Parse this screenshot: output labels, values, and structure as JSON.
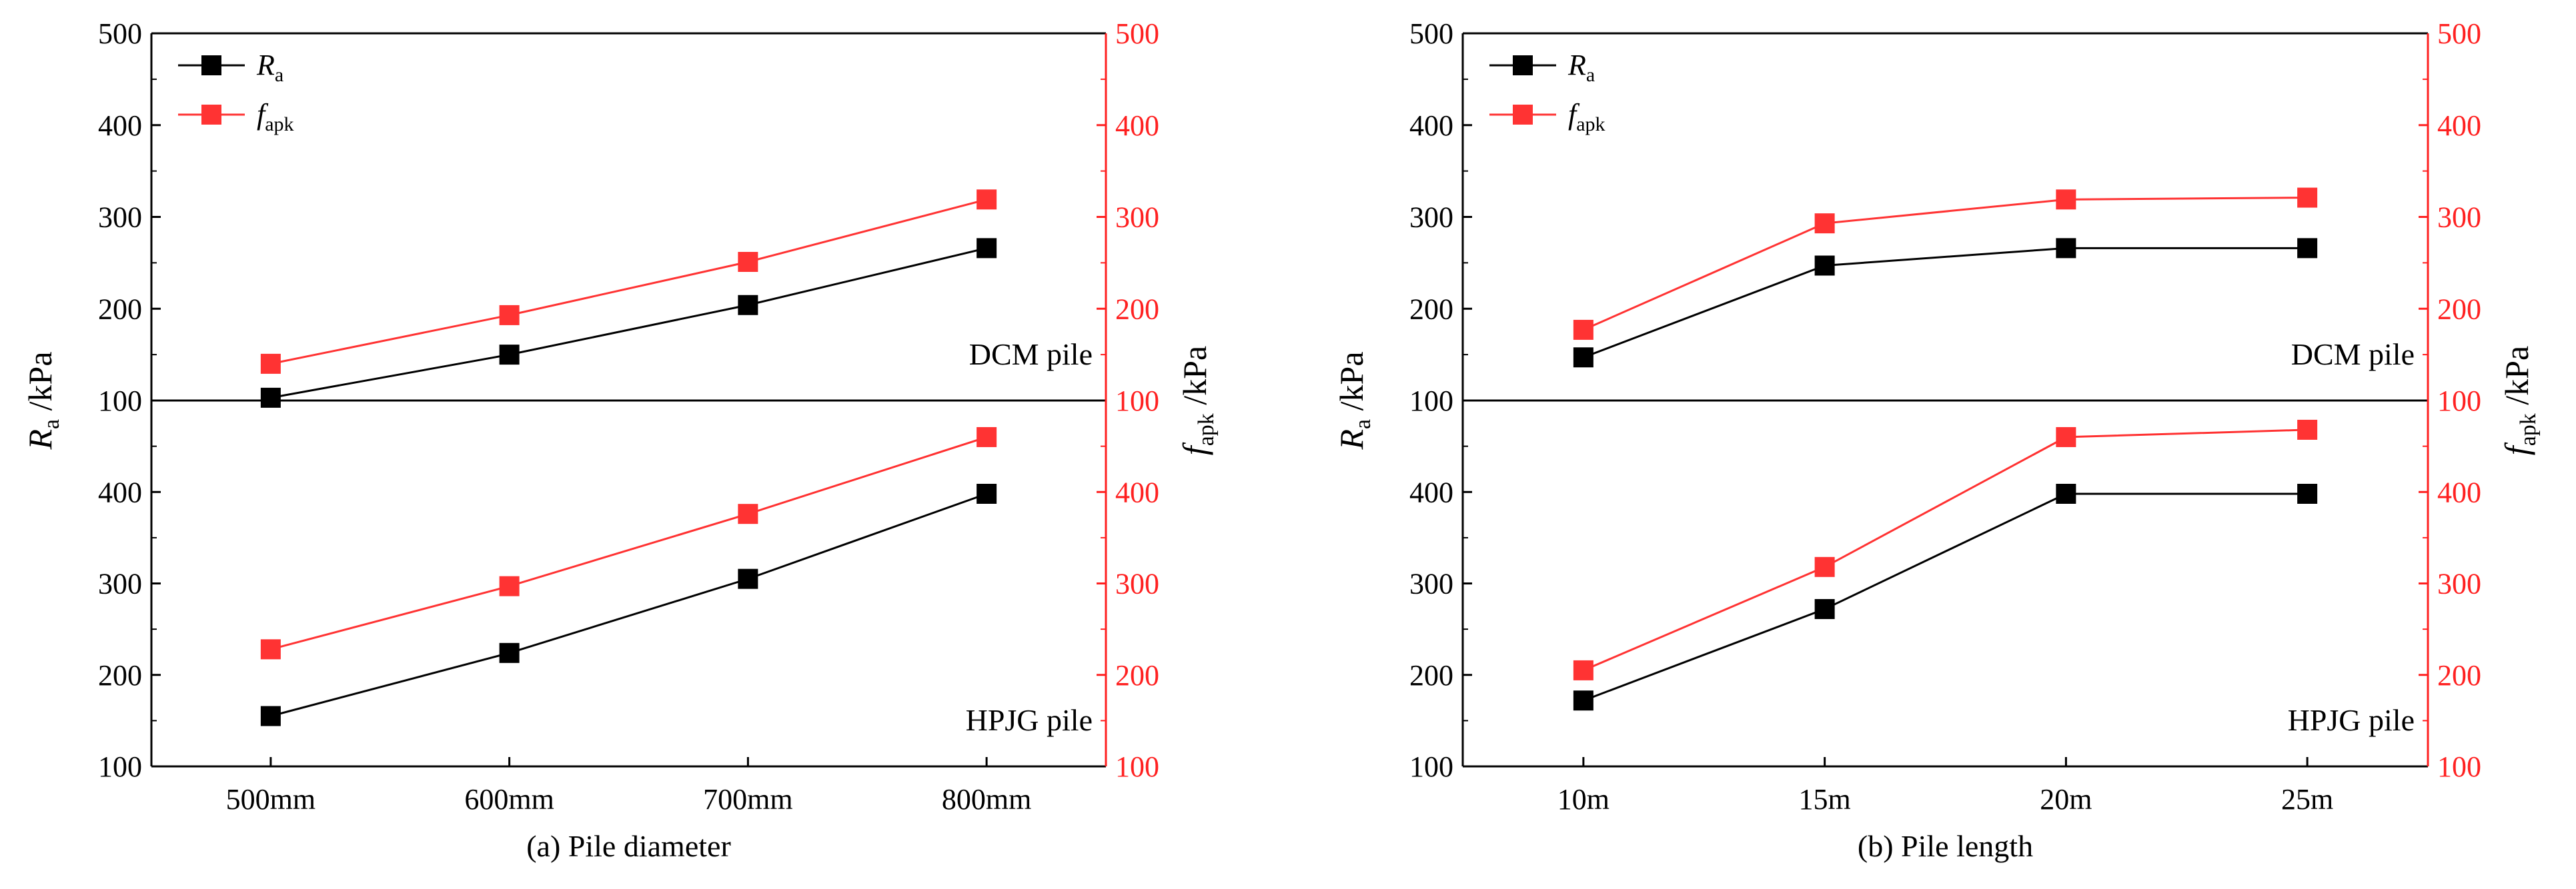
{
  "colors": {
    "ra": "#000000",
    "fapk": "#ff3333",
    "axis_left": "#000000",
    "axis_right": "#ff2020"
  },
  "legend": {
    "ra_main": "R",
    "ra_sub": "a",
    "fapk_main": "f",
    "fapk_sub": "apk"
  },
  "axis_labels": {
    "left_main": "R",
    "left_sub": "a",
    "left_unit": " /kPa",
    "right_main": "f",
    "right_sub": "apk",
    "right_unit": " /kPa"
  },
  "chart_data": [
    {
      "type": "line",
      "caption": "(a) Pile diameter",
      "categories": [
        "500mm",
        "600mm",
        "700mm",
        "800mm"
      ],
      "panels": [
        {
          "label": "DCM pile",
          "ylim": [
            100,
            500
          ],
          "yticks": [
            "100",
            "200",
            "300",
            "400",
            "500"
          ],
          "right_yticks": [
            "100",
            "200",
            "300",
            "400",
            "500"
          ],
          "series": [
            {
              "name": "Ra",
              "values": [
                103,
                150,
                204,
                266
              ]
            },
            {
              "name": "fapk",
              "values": [
                140,
                193,
                251,
                319
              ]
            }
          ]
        },
        {
          "label": "HPJG pile",
          "ylim": [
            100,
            500
          ],
          "yticks": [
            "100",
            "200",
            "300",
            "400"
          ],
          "right_yticks": [
            "100",
            "200",
            "300",
            "400"
          ],
          "series": [
            {
              "name": "Ra",
              "values": [
                155,
                224,
                305,
                398
              ]
            },
            {
              "name": "fapk",
              "values": [
                228,
                297,
                376,
                460
              ]
            }
          ]
        }
      ]
    },
    {
      "type": "line",
      "caption": "(b) Pile length",
      "categories": [
        "10m",
        "15m",
        "20m",
        "25m"
      ],
      "panels": [
        {
          "label": "DCM pile",
          "ylim": [
            100,
            500
          ],
          "yticks": [
            "100",
            "200",
            "300",
            "400",
            "500"
          ],
          "right_yticks": [
            "100",
            "200",
            "300",
            "400",
            "500"
          ],
          "series": [
            {
              "name": "Ra",
              "values": [
                147,
                247,
                266,
                266
              ]
            },
            {
              "name": "fapk",
              "values": [
                177,
                293,
                319,
                321
              ]
            }
          ]
        },
        {
          "label": "HPJG pile",
          "ylim": [
            100,
            500
          ],
          "yticks": [
            "100",
            "200",
            "300",
            "400"
          ],
          "right_yticks": [
            "100",
            "200",
            "300",
            "400"
          ],
          "series": [
            {
              "name": "Ra",
              "values": [
                172,
                272,
                398,
                398
              ]
            },
            {
              "name": "fapk",
              "values": [
                205,
                318,
                460,
                468
              ]
            }
          ]
        }
      ]
    }
  ]
}
